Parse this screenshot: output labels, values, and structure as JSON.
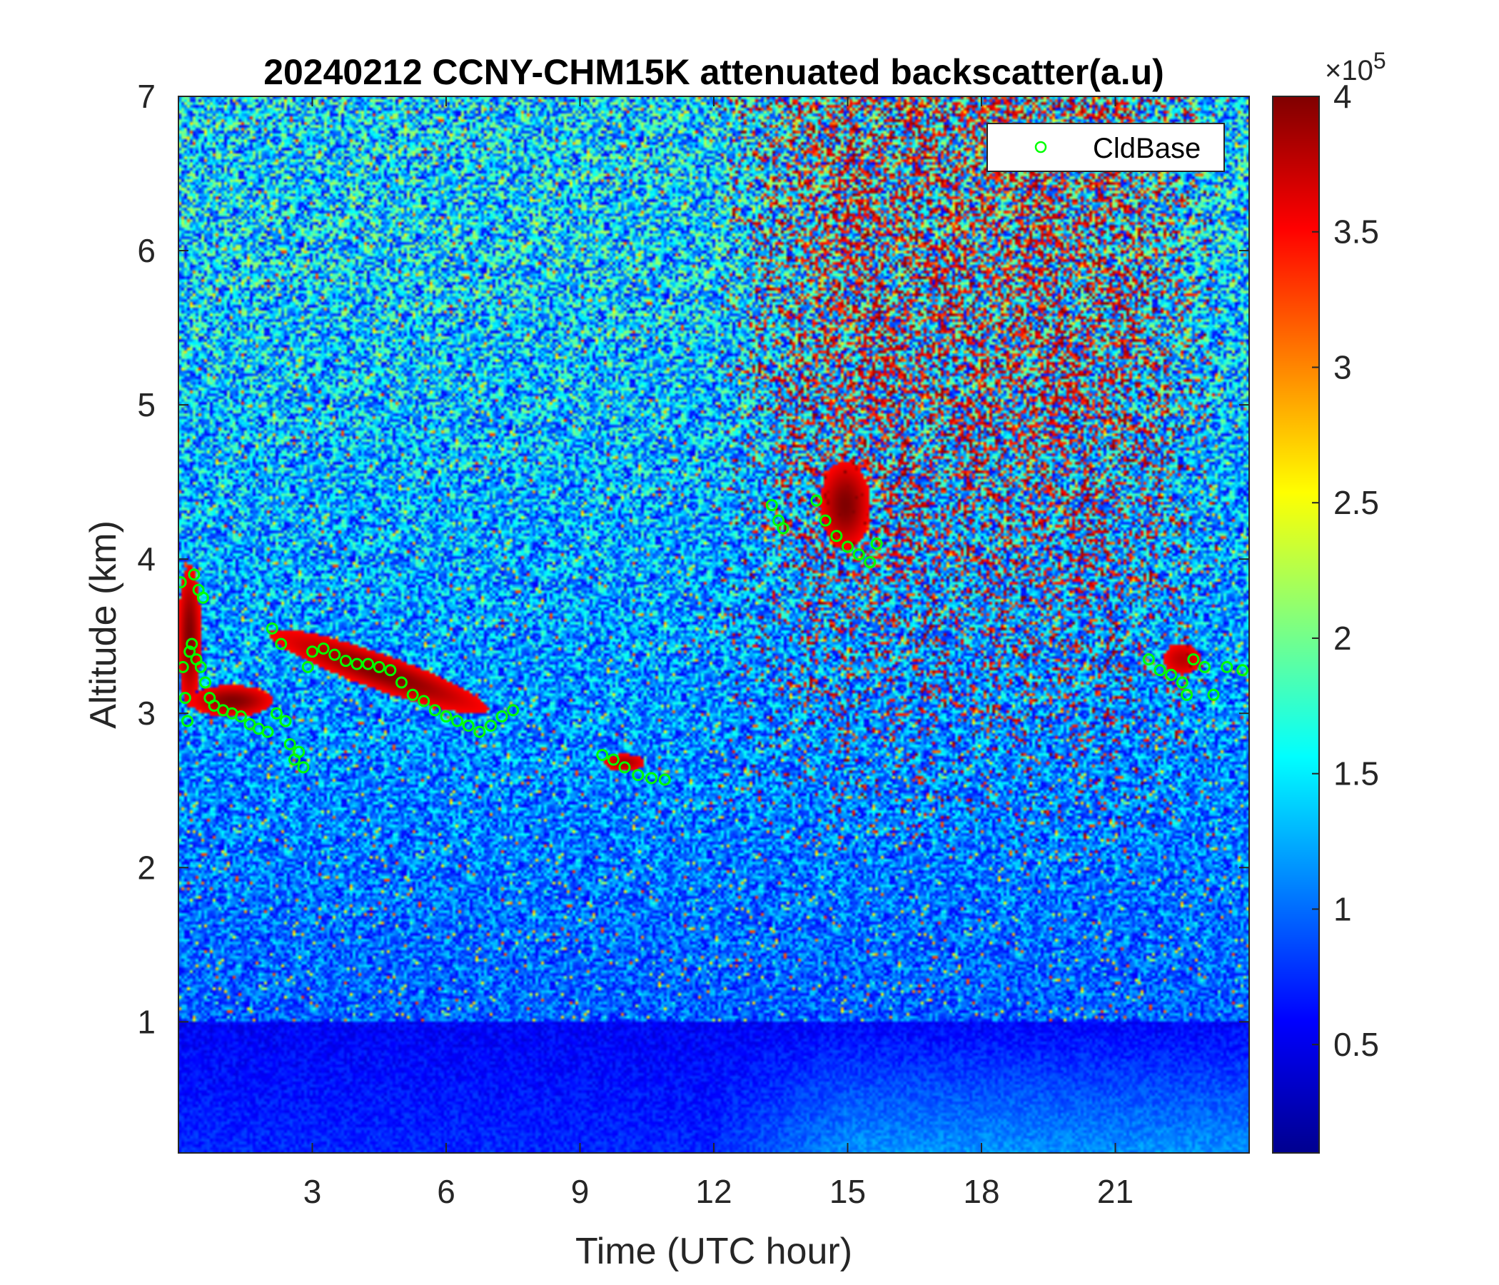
{
  "chart_data": {
    "type": "heatmap",
    "title": "20240212 CCNY-CHM15K attenuated backscatter(a.u)",
    "xlabel": "Time (UTC hour)",
    "ylabel": "Altitude (km)",
    "xlim": [
      0,
      24
    ],
    "ylim": [
      0.15,
      7
    ],
    "xticks": [
      3,
      6,
      9,
      12,
      15,
      18,
      21
    ],
    "yticks": [
      1,
      2,
      3,
      4,
      5,
      6,
      7
    ],
    "colorbar": {
      "colormap": "jet",
      "clim": [
        0.1,
        4
      ],
      "ticks": [
        0.5,
        1,
        1.5,
        2,
        2.5,
        3,
        3.5,
        4
      ],
      "tick_labels": [
        "0.5",
        "1",
        "1.5",
        "2",
        "2.5",
        "3",
        "3.5",
        "4"
      ],
      "exponent_base": "×10",
      "exponent_power": "5"
    },
    "legend": {
      "position": "top-right",
      "entries": [
        "CldBase"
      ]
    },
    "series": [
      {
        "name": "CldBase",
        "marker": "circle",
        "color": "#00ff00",
        "points": [
          {
            "x": 0.05,
            "y": 3.85
          },
          {
            "x": 0.1,
            "y": 3.3
          },
          {
            "x": 0.15,
            "y": 3.1
          },
          {
            "x": 0.2,
            "y": 2.95
          },
          {
            "x": 0.25,
            "y": 3.4
          },
          {
            "x": 0.3,
            "y": 3.45
          },
          {
            "x": 0.35,
            "y": 3.9
          },
          {
            "x": 0.4,
            "y": 3.35
          },
          {
            "x": 0.45,
            "y": 3.8
          },
          {
            "x": 0.5,
            "y": 3.3
          },
          {
            "x": 0.55,
            "y": 3.75
          },
          {
            "x": 0.6,
            "y": 3.2
          },
          {
            "x": 0.7,
            "y": 3.1
          },
          {
            "x": 0.8,
            "y": 3.05
          },
          {
            "x": 1.0,
            "y": 3.02
          },
          {
            "x": 1.2,
            "y": 3.0
          },
          {
            "x": 1.4,
            "y": 2.98
          },
          {
            "x": 1.6,
            "y": 2.93
          },
          {
            "x": 1.8,
            "y": 2.9
          },
          {
            "x": 2.0,
            "y": 2.88
          },
          {
            "x": 2.1,
            "y": 3.55
          },
          {
            "x": 2.2,
            "y": 3.0
          },
          {
            "x": 2.3,
            "y": 3.45
          },
          {
            "x": 2.4,
            "y": 2.95
          },
          {
            "x": 2.5,
            "y": 2.8
          },
          {
            "x": 2.6,
            "y": 2.7
          },
          {
            "x": 2.7,
            "y": 2.75
          },
          {
            "x": 2.8,
            "y": 2.65
          },
          {
            "x": 2.9,
            "y": 3.3
          },
          {
            "x": 3.0,
            "y": 3.4
          },
          {
            "x": 3.25,
            "y": 3.42
          },
          {
            "x": 3.5,
            "y": 3.38
          },
          {
            "x": 3.75,
            "y": 3.34
          },
          {
            "x": 4.0,
            "y": 3.32
          },
          {
            "x": 4.25,
            "y": 3.32
          },
          {
            "x": 4.5,
            "y": 3.3
          },
          {
            "x": 4.75,
            "y": 3.28
          },
          {
            "x": 5.0,
            "y": 3.2
          },
          {
            "x": 5.25,
            "y": 3.12
          },
          {
            "x": 5.5,
            "y": 3.08
          },
          {
            "x": 5.75,
            "y": 3.02
          },
          {
            "x": 6.0,
            "y": 2.98
          },
          {
            "x": 6.25,
            "y": 2.95
          },
          {
            "x": 6.5,
            "y": 2.92
          },
          {
            "x": 6.75,
            "y": 2.88
          },
          {
            "x": 7.0,
            "y": 2.92
          },
          {
            "x": 7.25,
            "y": 2.98
          },
          {
            "x": 7.5,
            "y": 3.02
          },
          {
            "x": 9.5,
            "y": 2.73
          },
          {
            "x": 9.75,
            "y": 2.7
          },
          {
            "x": 10.0,
            "y": 2.65
          },
          {
            "x": 10.3,
            "y": 2.6
          },
          {
            "x": 10.6,
            "y": 2.58
          },
          {
            "x": 10.9,
            "y": 2.57
          },
          {
            "x": 13.3,
            "y": 4.35
          },
          {
            "x": 13.45,
            "y": 4.25
          },
          {
            "x": 13.55,
            "y": 4.2
          },
          {
            "x": 14.3,
            "y": 4.38
          },
          {
            "x": 14.5,
            "y": 4.25
          },
          {
            "x": 14.75,
            "y": 4.15
          },
          {
            "x": 15.0,
            "y": 4.08
          },
          {
            "x": 15.25,
            "y": 4.03
          },
          {
            "x": 15.5,
            "y": 3.98
          },
          {
            "x": 15.65,
            "y": 4.1
          },
          {
            "x": 21.75,
            "y": 3.35
          },
          {
            "x": 22.0,
            "y": 3.28
          },
          {
            "x": 22.25,
            "y": 3.25
          },
          {
            "x": 22.5,
            "y": 3.2
          },
          {
            "x": 22.6,
            "y": 3.12
          },
          {
            "x": 22.75,
            "y": 3.35
          },
          {
            "x": 23.0,
            "y": 3.3
          },
          {
            "x": 23.2,
            "y": 3.12
          },
          {
            "x": 23.5,
            "y": 3.3
          },
          {
            "x": 23.85,
            "y": 3.28
          }
        ]
      }
    ]
  }
}
